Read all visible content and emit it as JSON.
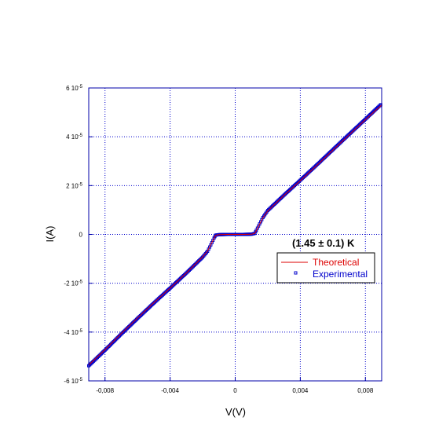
{
  "chart_data": {
    "type": "line",
    "title": "",
    "xlabel": "V(V)",
    "ylabel": "I(A)",
    "xlim": [
      -0.009,
      0.009
    ],
    "ylim": [
      -6e-05,
      6e-05
    ],
    "grid": true,
    "legend_position": "right, below annotation",
    "annotation": "(1.45 ± 0.1) K",
    "x_ticks": [
      {
        "value": -0.008,
        "label": "-0,008"
      },
      {
        "value": -0.004,
        "label": "-0,004"
      },
      {
        "value": 0,
        "label": "0"
      },
      {
        "value": 0.004,
        "label": "0,004"
      },
      {
        "value": 0.008,
        "label": "0,008"
      }
    ],
    "y_ticks": [
      {
        "value": 6e-05,
        "mant": "6 10",
        "exp": "-5"
      },
      {
        "value": 4e-05,
        "mant": "4 10",
        "exp": "-5"
      },
      {
        "value": 2e-05,
        "mant": "2 10",
        "exp": "-5"
      },
      {
        "value": 0,
        "mant": "0",
        "exp": ""
      },
      {
        "value": -2e-05,
        "mant": "-2 10",
        "exp": "-5"
      },
      {
        "value": -4e-05,
        "mant": "-4 10",
        "exp": "-5"
      },
      {
        "value": -6e-05,
        "mant": "-6 10",
        "exp": "-5"
      }
    ],
    "series": [
      {
        "name": "Theoretical",
        "color": "#dd0000",
        "style": "line",
        "points": [
          [
            -0.009,
            -5.35e-05
          ],
          [
            -0.008,
            -4.72e-05
          ],
          [
            -0.007,
            -4.06e-05
          ],
          [
            -0.006,
            -3.42e-05
          ],
          [
            -0.005,
            -2.8e-05
          ],
          [
            -0.004,
            -2.2e-05
          ],
          [
            -0.003,
            -1.58e-05
          ],
          [
            -0.002,
            -9.2e-06
          ],
          [
            -0.0017,
            -6.8e-06
          ],
          [
            -0.0015,
            -4.2e-06
          ],
          [
            -0.0013,
            -1.6e-06
          ],
          [
            -0.0012,
            -4e-07
          ],
          [
            -0.001,
            -1e-07
          ],
          [
            -0.0005,
            0
          ],
          [
            0,
            0
          ],
          [
            0.0005,
            0
          ],
          [
            0.001,
            1e-07
          ],
          [
            0.0012,
            4e-07
          ],
          [
            0.0013,
            1.6e-06
          ],
          [
            0.0015,
            4.2e-06
          ],
          [
            0.0017,
            6.8e-06
          ],
          [
            0.002,
            9.6e-06
          ],
          [
            0.003,
            1.6e-05
          ],
          [
            0.004,
            2.2e-05
          ],
          [
            0.005,
            2.82e-05
          ],
          [
            0.006,
            3.45e-05
          ],
          [
            0.007,
            4.08e-05
          ],
          [
            0.008,
            4.7e-05
          ],
          [
            0.009,
            5.3e-05
          ]
        ]
      },
      {
        "name": "Experimental",
        "color": "#0000cc",
        "style": "markers",
        "points": [
          [
            -0.009,
            -5.38e-05
          ],
          [
            -0.008,
            -4.74e-05
          ],
          [
            -0.007,
            -4.08e-05
          ],
          [
            -0.006,
            -3.44e-05
          ],
          [
            -0.005,
            -2.81e-05
          ],
          [
            -0.004,
            -2.2e-05
          ],
          [
            -0.003,
            -1.58e-05
          ],
          [
            -0.002,
            -9.3e-06
          ],
          [
            -0.0017,
            -6.9e-06
          ],
          [
            -0.0015,
            -4.3e-06
          ],
          [
            -0.0013,
            -1.5e-06
          ],
          [
            -0.0012,
            -3e-07
          ],
          [
            -0.001,
            -1e-07
          ],
          [
            -0.0005,
            0
          ],
          [
            0,
            0
          ],
          [
            0.0005,
            0
          ],
          [
            0.001,
            1e-07
          ],
          [
            0.0012,
            4e-07
          ],
          [
            0.0013,
            1.7e-06
          ],
          [
            0.0015,
            4.3e-06
          ],
          [
            0.0017,
            6.9e-06
          ],
          [
            0.002,
            9.8e-06
          ],
          [
            0.003,
            1.61e-05
          ],
          [
            0.004,
            2.22e-05
          ],
          [
            0.005,
            2.84e-05
          ],
          [
            0.006,
            3.47e-05
          ],
          [
            0.007,
            4.1e-05
          ],
          [
            0.008,
            4.72e-05
          ],
          [
            0.009,
            5.35e-05
          ]
        ]
      }
    ]
  }
}
